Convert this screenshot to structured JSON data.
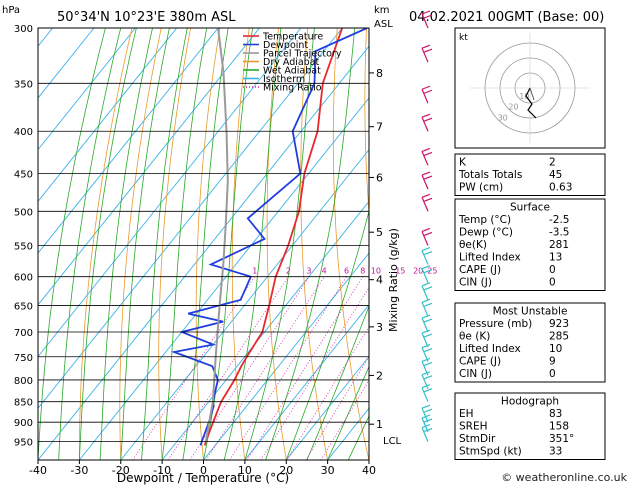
{
  "header": {
    "location": "50°34'N  10°23'E  380m  ASL",
    "datetime": "04.02.2021  00GMT  (Base: 00)",
    "hpa_unit": "hPa",
    "km_unit": "km",
    "asl_unit": "ASL"
  },
  "chart_data": {
    "type": "line",
    "title": "50°34'N  10°23'E  380m  ASL",
    "xlabel": "Dewpoint / Temperature (°C)",
    "ylabel": "Mixing Ratio (g/kg)",
    "xlim": [
      -40,
      40
    ],
    "ylim_hpa": [
      300,
      1000
    ],
    "x_ticks": [
      -40,
      -30,
      -20,
      -10,
      0,
      10,
      20,
      30,
      40
    ],
    "pressure_levels": [
      300,
      350,
      400,
      450,
      500,
      550,
      600,
      650,
      700,
      750,
      800,
      850,
      900,
      950
    ],
    "km_labels": [
      {
        "km": "1",
        "p": 905
      },
      {
        "km": "2",
        "p": 790
      },
      {
        "km": "3",
        "p": 690
      },
      {
        "km": "4",
        "p": 605
      },
      {
        "km": "5",
        "p": 530
      },
      {
        "km": "6",
        "p": 455
      },
      {
        "km": "7",
        "p": 395
      },
      {
        "km": "8",
        "p": 340
      }
    ],
    "lcl_label": "LCL",
    "lcl_p": 950,
    "mixing_ratio_labels": [
      "1",
      "2",
      "3",
      "4",
      "6",
      "8",
      "10",
      "15",
      "20",
      "25"
    ],
    "mixing_ratio_values": [
      1,
      2,
      3,
      4,
      6,
      8,
      10,
      15,
      20,
      25
    ],
    "legend": [
      "Temperature",
      "Dewpoint",
      "Parcel Trajectory",
      "Dry Adiabat",
      "Wet Adiabat",
      "Isotherm",
      "Mixing Ratio"
    ],
    "series": [
      {
        "name": "Temperature",
        "color": "#e8282e",
        "points": [
          [
            -2.5,
            960
          ],
          [
            -3,
            950
          ],
          [
            -5,
            900
          ],
          [
            -7,
            850
          ],
          [
            -8,
            800
          ],
          [
            -9,
            770
          ],
          [
            -9.5,
            750
          ],
          [
            -10.5,
            700
          ],
          [
            -14,
            650
          ],
          [
            -18,
            600
          ],
          [
            -21,
            550
          ],
          [
            -25,
            500
          ],
          [
            -31,
            450
          ],
          [
            -36,
            400
          ],
          [
            -44,
            350
          ],
          [
            -50,
            300
          ]
        ]
      },
      {
        "name": "Dewpoint",
        "color": "#1f3de0",
        "points": [
          [
            -3.5,
            960
          ],
          [
            -4,
            950
          ],
          [
            -6,
            900
          ],
          [
            -8,
            860
          ],
          [
            -9,
            850
          ],
          [
            -12,
            800
          ],
          [
            -16,
            770
          ],
          [
            -28,
            740
          ],
          [
            -20,
            725
          ],
          [
            -30,
            700
          ],
          [
            -22,
            680
          ],
          [
            -32,
            665
          ],
          [
            -22,
            640
          ],
          [
            -24,
            600
          ],
          [
            -36,
            580
          ],
          [
            -28,
            540
          ],
          [
            -36,
            510
          ],
          [
            -32,
            450
          ],
          [
            -42,
            400
          ],
          [
            -46,
            350
          ],
          [
            -52,
            320
          ],
          [
            -44,
            300
          ]
        ]
      },
      {
        "name": "Parcel Trajectory",
        "color": "#9a9a9a",
        "points": [
          [
            -3,
            950
          ],
          [
            -9,
            850
          ],
          [
            -17,
            750
          ],
          [
            -26,
            650
          ],
          [
            -33,
            580
          ],
          [
            -40,
            520
          ],
          [
            -48,
            460
          ],
          [
            -58,
            400
          ],
          [
            -70,
            340
          ],
          [
            -80,
            300
          ]
        ]
      }
    ],
    "wind_color": "#30c0c8"
  },
  "indices": {
    "rows": [
      {
        "label": "K",
        "value": "2"
      },
      {
        "label": "Totals Totals",
        "value": "45"
      },
      {
        "label": "PW (cm)",
        "value": "0.63"
      }
    ]
  },
  "surface": {
    "title": "Surface",
    "rows": [
      {
        "label": "Temp (°C)",
        "value": "-2.5"
      },
      {
        "label": "Dewp (°C)",
        "value": "-3.5"
      },
      {
        "label": "θe(K)",
        "value": "281"
      },
      {
        "label": "Lifted Index",
        "value": "13"
      },
      {
        "label": "CAPE (J)",
        "value": "0"
      },
      {
        "label": "CIN (J)",
        "value": "0"
      }
    ]
  },
  "most_unstable": {
    "title": "Most Unstable",
    "rows": [
      {
        "label": "Pressure (mb)",
        "value": "923"
      },
      {
        "label": "θe (K)",
        "value": "285"
      },
      {
        "label": "Lifted Index",
        "value": "10"
      },
      {
        "label": "CAPE (J)",
        "value": "9"
      },
      {
        "label": "CIN (J)",
        "value": "0"
      }
    ]
  },
  "hodograph_table": {
    "title": "Hodograph",
    "rows": [
      {
        "label": "EH",
        "value": "83"
      },
      {
        "label": "SREH",
        "value": "158"
      },
      {
        "label": "StmDir",
        "value": "351°"
      },
      {
        "label": "StmSpd (kt)",
        "value": "33"
      }
    ]
  },
  "hodograph": {
    "unit": "kt",
    "ring_labels": [
      "10",
      "20",
      "30"
    ]
  },
  "footer": {
    "copyright": "© weatheronline.co.uk"
  }
}
